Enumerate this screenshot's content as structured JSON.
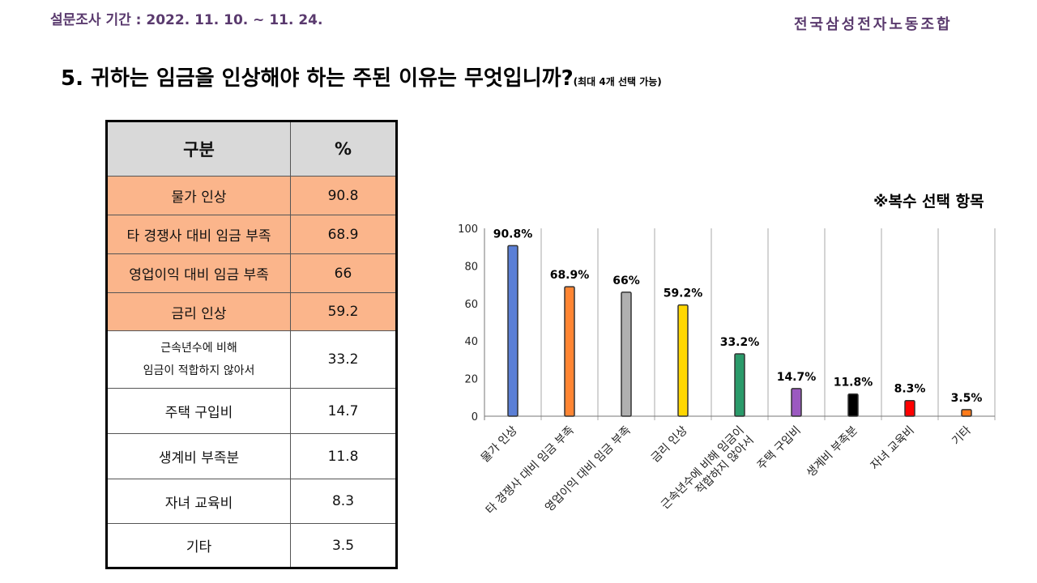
{
  "header": {
    "period": "설문조사 기간 : 2022. 11. 10. ~ 11. 24.",
    "org": "전국삼성전자노동조합"
  },
  "question": {
    "title": "5. 귀하는 임금을 인상해야 하는 주된 이유는 무엇입니까?",
    "note": "(최대 4개 선택 가능)"
  },
  "multi_note": "※복수 선택 항목",
  "table": {
    "headers": [
      "구분",
      "%"
    ],
    "rows": [
      {
        "label": "물가 인상",
        "value": "90.8",
        "highlight": true
      },
      {
        "label": "타 경쟁사 대비 임금 부족",
        "value": "68.9",
        "highlight": true
      },
      {
        "label": "영업이익 대비 임금 부족",
        "value": "66",
        "highlight": true
      },
      {
        "label": "금리 인상",
        "value": "59.2",
        "highlight": true
      },
      {
        "label": "근속년수에 비해\n임금이 적합하지 않아서",
        "value": "33.2",
        "highlight": false
      },
      {
        "label": "주택 구입비",
        "value": "14.7",
        "highlight": false
      },
      {
        "label": "생계비 부족분",
        "value": "11.8",
        "highlight": false
      },
      {
        "label": "자녀 교육비",
        "value": "8.3",
        "highlight": false
      },
      {
        "label": "기타",
        "value": "3.5",
        "highlight": false
      }
    ]
  },
  "chart_data": {
    "type": "bar",
    "title": "",
    "xlabel": "",
    "ylabel": "",
    "ylim": [
      0,
      100
    ],
    "yticks": [
      0,
      20,
      40,
      60,
      80,
      100
    ],
    "categories": [
      "물가 인상",
      "타 경쟁사 대비 임금 부족",
      "영업이익 대비 임금 부족",
      "금리 인상",
      "근속년수에 비해 임금이|적합하지 않아서",
      "주택 구입비",
      "생계비 부족분",
      "자녀 교육비",
      "기타"
    ],
    "values": [
      90.8,
      68.9,
      66,
      59.2,
      33.2,
      14.7,
      11.8,
      8.3,
      3.5
    ],
    "labels": [
      "90.8%",
      "68.9%",
      "66%",
      "59.2%",
      "33.2%",
      "14.7%",
      "11.8%",
      "8.3%",
      "3.5%"
    ],
    "colors": [
      "#5b7fd6",
      "#ff8533",
      "#b0b0b0",
      "#ffd700",
      "#2a9a6a",
      "#9b59c0",
      "#000000",
      "#ff0000",
      "#ff7a1a"
    ],
    "grid": "vertical"
  }
}
